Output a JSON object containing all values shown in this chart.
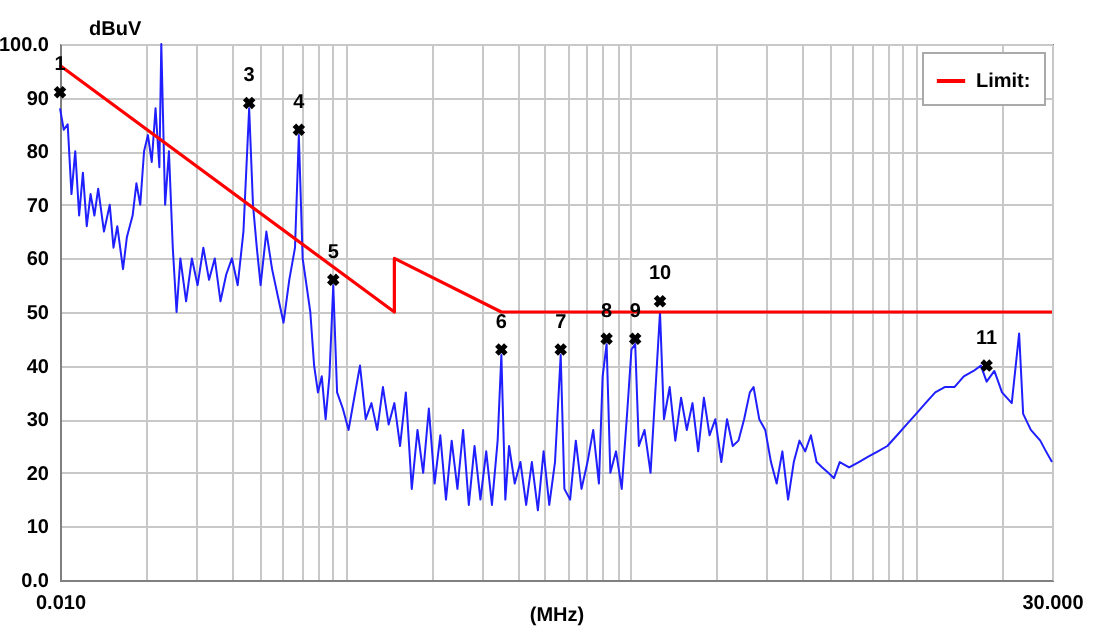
{
  "chart_data": {
    "type": "line",
    "xlabel": "(MHz)",
    "ylabel": "dBuV",
    "log": "x",
    "grid": true,
    "legend": "top right",
    "xlim": [
      0.01,
      30
    ],
    "ylim": [
      0,
      100
    ],
    "xticks": [
      {
        "value": 0.01,
        "label": "0.010"
      },
      {
        "value": 0.02,
        "label": null
      },
      {
        "value": 0.03,
        "label": null
      },
      {
        "value": 0.04,
        "label": null
      },
      {
        "value": 0.05,
        "label": null
      },
      {
        "value": 0.06,
        "label": null
      },
      {
        "value": 0.07,
        "label": null
      },
      {
        "value": 0.08,
        "label": null
      },
      {
        "value": 0.09,
        "label": null
      },
      {
        "value": 0.1,
        "label": null
      },
      {
        "value": 0.2,
        "label": null
      },
      {
        "value": 0.3,
        "label": null
      },
      {
        "value": 0.4,
        "label": null
      },
      {
        "value": 0.5,
        "label": null
      },
      {
        "value": 0.6,
        "label": null
      },
      {
        "value": 0.7,
        "label": null
      },
      {
        "value": 0.8,
        "label": null
      },
      {
        "value": 0.9,
        "label": null
      },
      {
        "value": 1,
        "label": null
      },
      {
        "value": 2,
        "label": null
      },
      {
        "value": 3,
        "label": null
      },
      {
        "value": 4,
        "label": null
      },
      {
        "value": 5,
        "label": null
      },
      {
        "value": 6,
        "label": null
      },
      {
        "value": 7,
        "label": null
      },
      {
        "value": 8,
        "label": null
      },
      {
        "value": 9,
        "label": null
      },
      {
        "value": 10,
        "label": null
      },
      {
        "value": 20,
        "label": null
      },
      {
        "value": 30,
        "label": "30.000"
      }
    ],
    "yticks": [
      {
        "value": 0,
        "label": "0.0"
      },
      10,
      20,
      30,
      40,
      50,
      60,
      70,
      80,
      90,
      {
        "value": 100,
        "label": "100.0"
      }
    ],
    "series": [
      {
        "color": "#1f1fff",
        "x": [
          0.01,
          0.01031,
          0.01064,
          0.01097,
          0.01131,
          0.01167,
          0.01203,
          0.01241,
          0.0128,
          0.0132,
          0.01361,
          0.01426,
          0.01494,
          0.0154,
          0.01588,
          0.01663,
          0.01716,
          0.01797,
          0.01853,
          0.01911,
          0.01971,
          0.02033,
          0.02097,
          0.02162,
          0.0223,
          0.02265,
          0.02336,
          0.02409,
          0.02485,
          0.02562,
          0.02642,
          0.02767,
          0.02899,
          0.03036,
          0.0318,
          0.0333,
          0.03487,
          0.03652,
          0.03825,
          0.04006,
          0.04196,
          0.04395,
          0.04603,
          0.04747,
          0.04896,
          0.05049,
          0.05288,
          0.05538,
          0.058,
          0.06075,
          0.06363,
          0.06664,
          0.06873,
          0.07088,
          0.07311,
          0.0754,
          0.07776,
          0.0802,
          0.08271,
          0.08531,
          0.08798,
          0.09074,
          0.09359,
          0.09802,
          0.1027,
          0.1075,
          0.1126,
          0.1179,
          0.1235,
          0.1294,
          0.1355,
          0.1419,
          0.1486,
          0.1556,
          0.163,
          0.171,
          0.1791,
          0.1875,
          0.1963,
          0.2056,
          0.2153,
          0.2254,
          0.236,
          0.2472,
          0.2588,
          0.271,
          0.2838,
          0.2976,
          0.3119,
          0.3266,
          0.342,
          0.3524,
          0.3639,
          0.375,
          0.3926,
          0.4111,
          0.4305,
          0.4508,
          0.4732,
          0.4955,
          0.5188,
          0.5433,
          0.5689,
          0.5861,
          0.6138,
          0.6427,
          0.673,
          0.7063,
          0.7396,
          0.7745,
          0.798,
          0.8241,
          0.8492,
          0.8892,
          0.9311,
          0.975,
          1.007,
          1.038,
          1.069,
          1.119,
          1.175,
          1.23,
          1.268,
          1.309,
          1.371,
          1.435,
          1.503,
          1.574,
          1.648,
          1.726,
          1.807,
          1.892,
          1.982,
          2.08,
          2.178,
          2.28,
          2.388,
          2.5,
          2.618,
          2.698,
          2.825,
          2.965,
          3.105,
          3.251,
          3.404,
          3.565,
          3.733,
          3.908,
          4.093,
          4.285,
          4.487,
          4.699,
          4.932,
          5.164,
          5.408,
          5.834,
          6.31,
          6.808,
          7.362,
          7.943,
          8.59,
          9.268,
          10.02,
          10.81,
          11.69,
          12.62,
          13.65,
          14.72,
          15.92,
          16.9,
          17.7,
          18.84,
          20.04,
          21.68,
          23.01,
          23.77,
          25.29,
          27.29,
          28.58,
          30
        ],
        "values": [
          88,
          84,
          85,
          72,
          80,
          68,
          76,
          66,
          72,
          68,
          73,
          65,
          70,
          62,
          66,
          58,
          64,
          68,
          74,
          70,
          80,
          83,
          78,
          88,
          77,
          100,
          70,
          80,
          62,
          50,
          60,
          52,
          60,
          55,
          62,
          56,
          60,
          52,
          57,
          60,
          55,
          65,
          88,
          70,
          62,
          55,
          65,
          58,
          53,
          48,
          56,
          62,
          83,
          60,
          55,
          50,
          40,
          35,
          38,
          30,
          38,
          55,
          35,
          32,
          28,
          34,
          40,
          30,
          33,
          28,
          36,
          29,
          33,
          25,
          35,
          17,
          28,
          20,
          32,
          18,
          27,
          15,
          26,
          17,
          28,
          14,
          25,
          15,
          24,
          14,
          26,
          42,
          15,
          25,
          18,
          22,
          14,
          22,
          13,
          24,
          14,
          22,
          42,
          17,
          15,
          26,
          17,
          22,
          28,
          18,
          38,
          44,
          20,
          24,
          17,
          32,
          43,
          44,
          25,
          28,
          20,
          38,
          50,
          30,
          36,
          26,
          34,
          28,
          33,
          24,
          34,
          27,
          30,
          22,
          30,
          25,
          26,
          30,
          35,
          36,
          30,
          28,
          22,
          18,
          24,
          15,
          22,
          26,
          24,
          27,
          22,
          21,
          20,
          19,
          22,
          21,
          22,
          23,
          24,
          25,
          27,
          29,
          31,
          33,
          35,
          36,
          36,
          38,
          39,
          40,
          37,
          39,
          35,
          33,
          46,
          31,
          28,
          26,
          24,
          22
        ]
      },
      {
        "name": "Limit:",
        "color": "#ff0000",
        "x": [
          0.01,
          0.1486,
          0.1486,
          0.3524,
          30
        ],
        "values": [
          96,
          50,
          60,
          50,
          50
        ]
      },
      {
        "type": "scatter",
        "color": "#000000",
        "marker": "cross",
        "x": [
          0.01,
          0.04603,
          0.06873,
          0.09074,
          0.3524,
          0.5689,
          0.8241,
          1.038,
          1.268,
          17.7
        ],
        "values": [
          91,
          89,
          84,
          56,
          43,
          43,
          45,
          45,
          52,
          40
        ]
      }
    ],
    "annotations": [
      {
        "text": "1",
        "x": 0.01,
        "y": 91
      },
      {
        "text": "3",
        "x": 0.04603,
        "y": 89
      },
      {
        "text": "4",
        "x": 0.06873,
        "y": 84
      },
      {
        "text": "5",
        "x": 0.09074,
        "y": 56
      },
      {
        "text": "6",
        "x": 0.3524,
        "y": 43
      },
      {
        "text": "7",
        "x": 0.5689,
        "y": 43
      },
      {
        "text": "8",
        "x": 0.8241,
        "y": 45
      },
      {
        "text": "9",
        "x": 1.038,
        "y": 45
      },
      {
        "text": "10",
        "x": 1.268,
        "y": 52
      },
      {
        "text": "11",
        "x": 17.7,
        "y": 40
      }
    ]
  }
}
